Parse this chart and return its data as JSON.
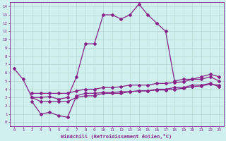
{
  "xlabel": "Windchill (Refroidissement éolien,°C)",
  "background_color": "#cff0ee",
  "grid_color": "#b0d8cc",
  "line_color": "#882288",
  "xlim": [
    -0.5,
    23.5
  ],
  "ylim": [
    -0.5,
    14.5
  ],
  "xticks": [
    0,
    1,
    2,
    3,
    4,
    5,
    6,
    7,
    8,
    9,
    10,
    11,
    12,
    13,
    14,
    15,
    16,
    17,
    18,
    19,
    20,
    21,
    22,
    23
  ],
  "yticks": [
    0,
    1,
    2,
    3,
    4,
    5,
    6,
    7,
    8,
    9,
    10,
    11,
    12,
    13,
    14
  ],
  "line1_x": [
    0,
    1,
    2,
    3,
    4,
    5,
    6,
    7,
    8,
    9,
    10,
    11,
    12,
    13,
    14,
    15,
    16,
    17,
    18,
    19,
    20,
    21,
    22,
    23
  ],
  "line1_y": [
    6.5,
    5.2,
    3.0,
    3.0,
    3.1,
    2.8,
    3.0,
    5.5,
    9.5,
    9.5,
    13.0,
    13.0,
    12.5,
    13.0,
    14.3,
    13.0,
    12.0,
    11.0,
    5.0,
    5.2,
    5.2,
    5.5,
    5.8,
    5.5
  ],
  "line2_x": [
    2,
    3,
    4,
    5,
    6,
    7,
    8,
    9,
    10,
    11,
    12,
    13,
    14,
    15,
    16,
    17,
    18,
    19,
    20,
    21,
    22,
    23
  ],
  "line2_y": [
    3.0,
    2.5,
    2.5,
    2.5,
    2.5,
    3.0,
    3.2,
    3.2,
    3.5,
    3.5,
    3.5,
    3.7,
    3.8,
    3.8,
    4.0,
    4.0,
    4.2,
    4.2,
    4.5,
    4.5,
    4.7,
    4.3
  ],
  "line3_x": [
    2,
    3,
    4,
    5,
    6,
    7,
    8,
    9,
    10,
    11,
    12,
    13,
    14,
    15,
    16,
    17,
    18,
    19,
    20,
    21,
    22,
    23
  ],
  "line3_y": [
    3.5,
    3.5,
    3.5,
    3.5,
    3.5,
    3.8,
    4.0,
    4.0,
    4.2,
    4.2,
    4.3,
    4.5,
    4.5,
    4.5,
    4.7,
    4.7,
    4.8,
    4.9,
    5.2,
    5.2,
    5.5,
    5.0
  ],
  "line4_x": [
    2,
    3,
    4,
    5,
    6,
    7,
    8,
    9,
    10,
    11,
    12,
    13,
    14,
    15,
    16,
    17,
    18,
    19,
    20,
    21,
    22,
    23
  ],
  "line4_y": [
    2.5,
    1.0,
    1.2,
    0.8,
    0.6,
    3.2,
    3.5,
    3.5,
    3.6,
    3.6,
    3.7,
    3.7,
    3.8,
    3.8,
    3.9,
    3.9,
    4.0,
    4.1,
    4.3,
    4.4,
    4.6,
    4.5
  ]
}
